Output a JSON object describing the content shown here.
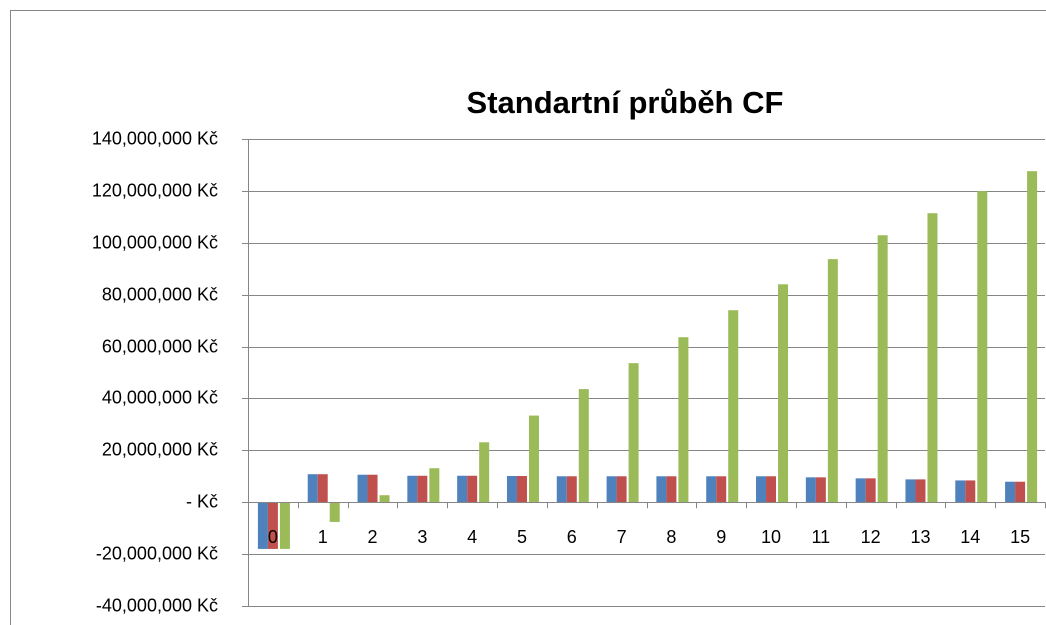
{
  "chart_data": {
    "type": "bar",
    "title": "Standartní průběh CF",
    "categories": [
      "0",
      "1",
      "2",
      "3",
      "4",
      "5",
      "6",
      "7",
      "8",
      "9",
      "10",
      "11",
      "12",
      "13",
      "14",
      "15"
    ],
    "series": [
      {
        "color": "#4f81bd",
        "values": [
          -18000000,
          10800000,
          10600000,
          10200000,
          10200000,
          10100000,
          10000000,
          10000000,
          10000000,
          10000000,
          10000000,
          9600000,
          9200000,
          8800000,
          8400000,
          7900000
        ]
      },
      {
        "color": "#c0504d",
        "values": [
          -18000000,
          10800000,
          10600000,
          10200000,
          10200000,
          10100000,
          10000000,
          10000000,
          10000000,
          10000000,
          10000000,
          9600000,
          9200000,
          8800000,
          8400000,
          7900000
        ]
      },
      {
        "color": "#9bbb59",
        "values": [
          -18000000,
          -7600000,
          2700000,
          13100000,
          23100000,
          33400000,
          43600000,
          53600000,
          63600000,
          74000000,
          84000000,
          93700000,
          102900000,
          111400000,
          119900000,
          127600000
        ]
      }
    ],
    "ylim": [
      -40000000,
      140000000
    ],
    "yticks": [
      {
        "value": -40000000,
        "label": "-40,000,000 Kč"
      },
      {
        "value": -20000000,
        "label": "-20,000,000 Kč"
      },
      {
        "value": 0,
        "label": "- Kč"
      },
      {
        "value": 20000000,
        "label": "20,000,000 Kč"
      },
      {
        "value": 40000000,
        "label": "40,000,000 Kč"
      },
      {
        "value": 60000000,
        "label": "60,000,000 Kč"
      },
      {
        "value": 80000000,
        "label": "80,000,000 Kč"
      },
      {
        "value": 100000000,
        "label": "100,000,000 Kč"
      },
      {
        "value": 120000000,
        "label": "120,000,000 Kč"
      },
      {
        "value": 140000000,
        "label": "140,000,000 Kč"
      }
    ],
    "grid": true
  }
}
